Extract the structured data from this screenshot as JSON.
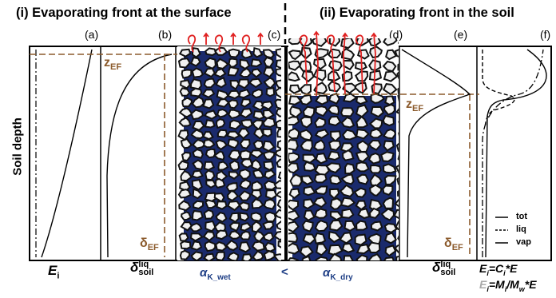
{
  "titles": {
    "left": "(i) Evaporating front at the surface",
    "right": "(ii) Evaporating front in the soil"
  },
  "panels": [
    "(a)",
    "(b)",
    "(c)",
    "(d)",
    "(e)",
    "(f)"
  ],
  "y_axis_label": "Soil depth",
  "annotations": {
    "z_ef_base": "z",
    "z_ef_sub": "EF",
    "delta_ef_base": "δ",
    "delta_ef_sub": "EF"
  },
  "bottom_labels": {
    "e_i_base": "E",
    "e_i_sub": "i",
    "delta_soil_base": "δ",
    "delta_soil_sub": "soil",
    "delta_soil_sup": "liq",
    "alpha_wet_base": "α",
    "alpha_wet_sub": "K_wet",
    "less_than": "<",
    "alpha_dry_base": "α",
    "alpha_dry_sub": "K_dry",
    "eq1": "E",
    "eq1_sub": "i",
    "eq1_rest": "=C",
    "eq1_sub2": "i",
    "eq1_end": "*E",
    "eq2_pre": "E",
    "eq2_sub": "i",
    "eq2_rest": "=M",
    "eq2_sub2": "i",
    "eq2_mid": "/M",
    "eq2_sub3": "w",
    "eq2_end": "*E"
  },
  "legend": {
    "items": [
      {
        "label": "tot",
        "style": "solid"
      },
      {
        "label": "liq",
        "style": "dashed"
      },
      {
        "label": "vap",
        "style": "solid"
      }
    ]
  },
  "colors": {
    "brown": "#8b5a2b",
    "navy": "#1a2a6c",
    "red": "#e02020"
  }
}
